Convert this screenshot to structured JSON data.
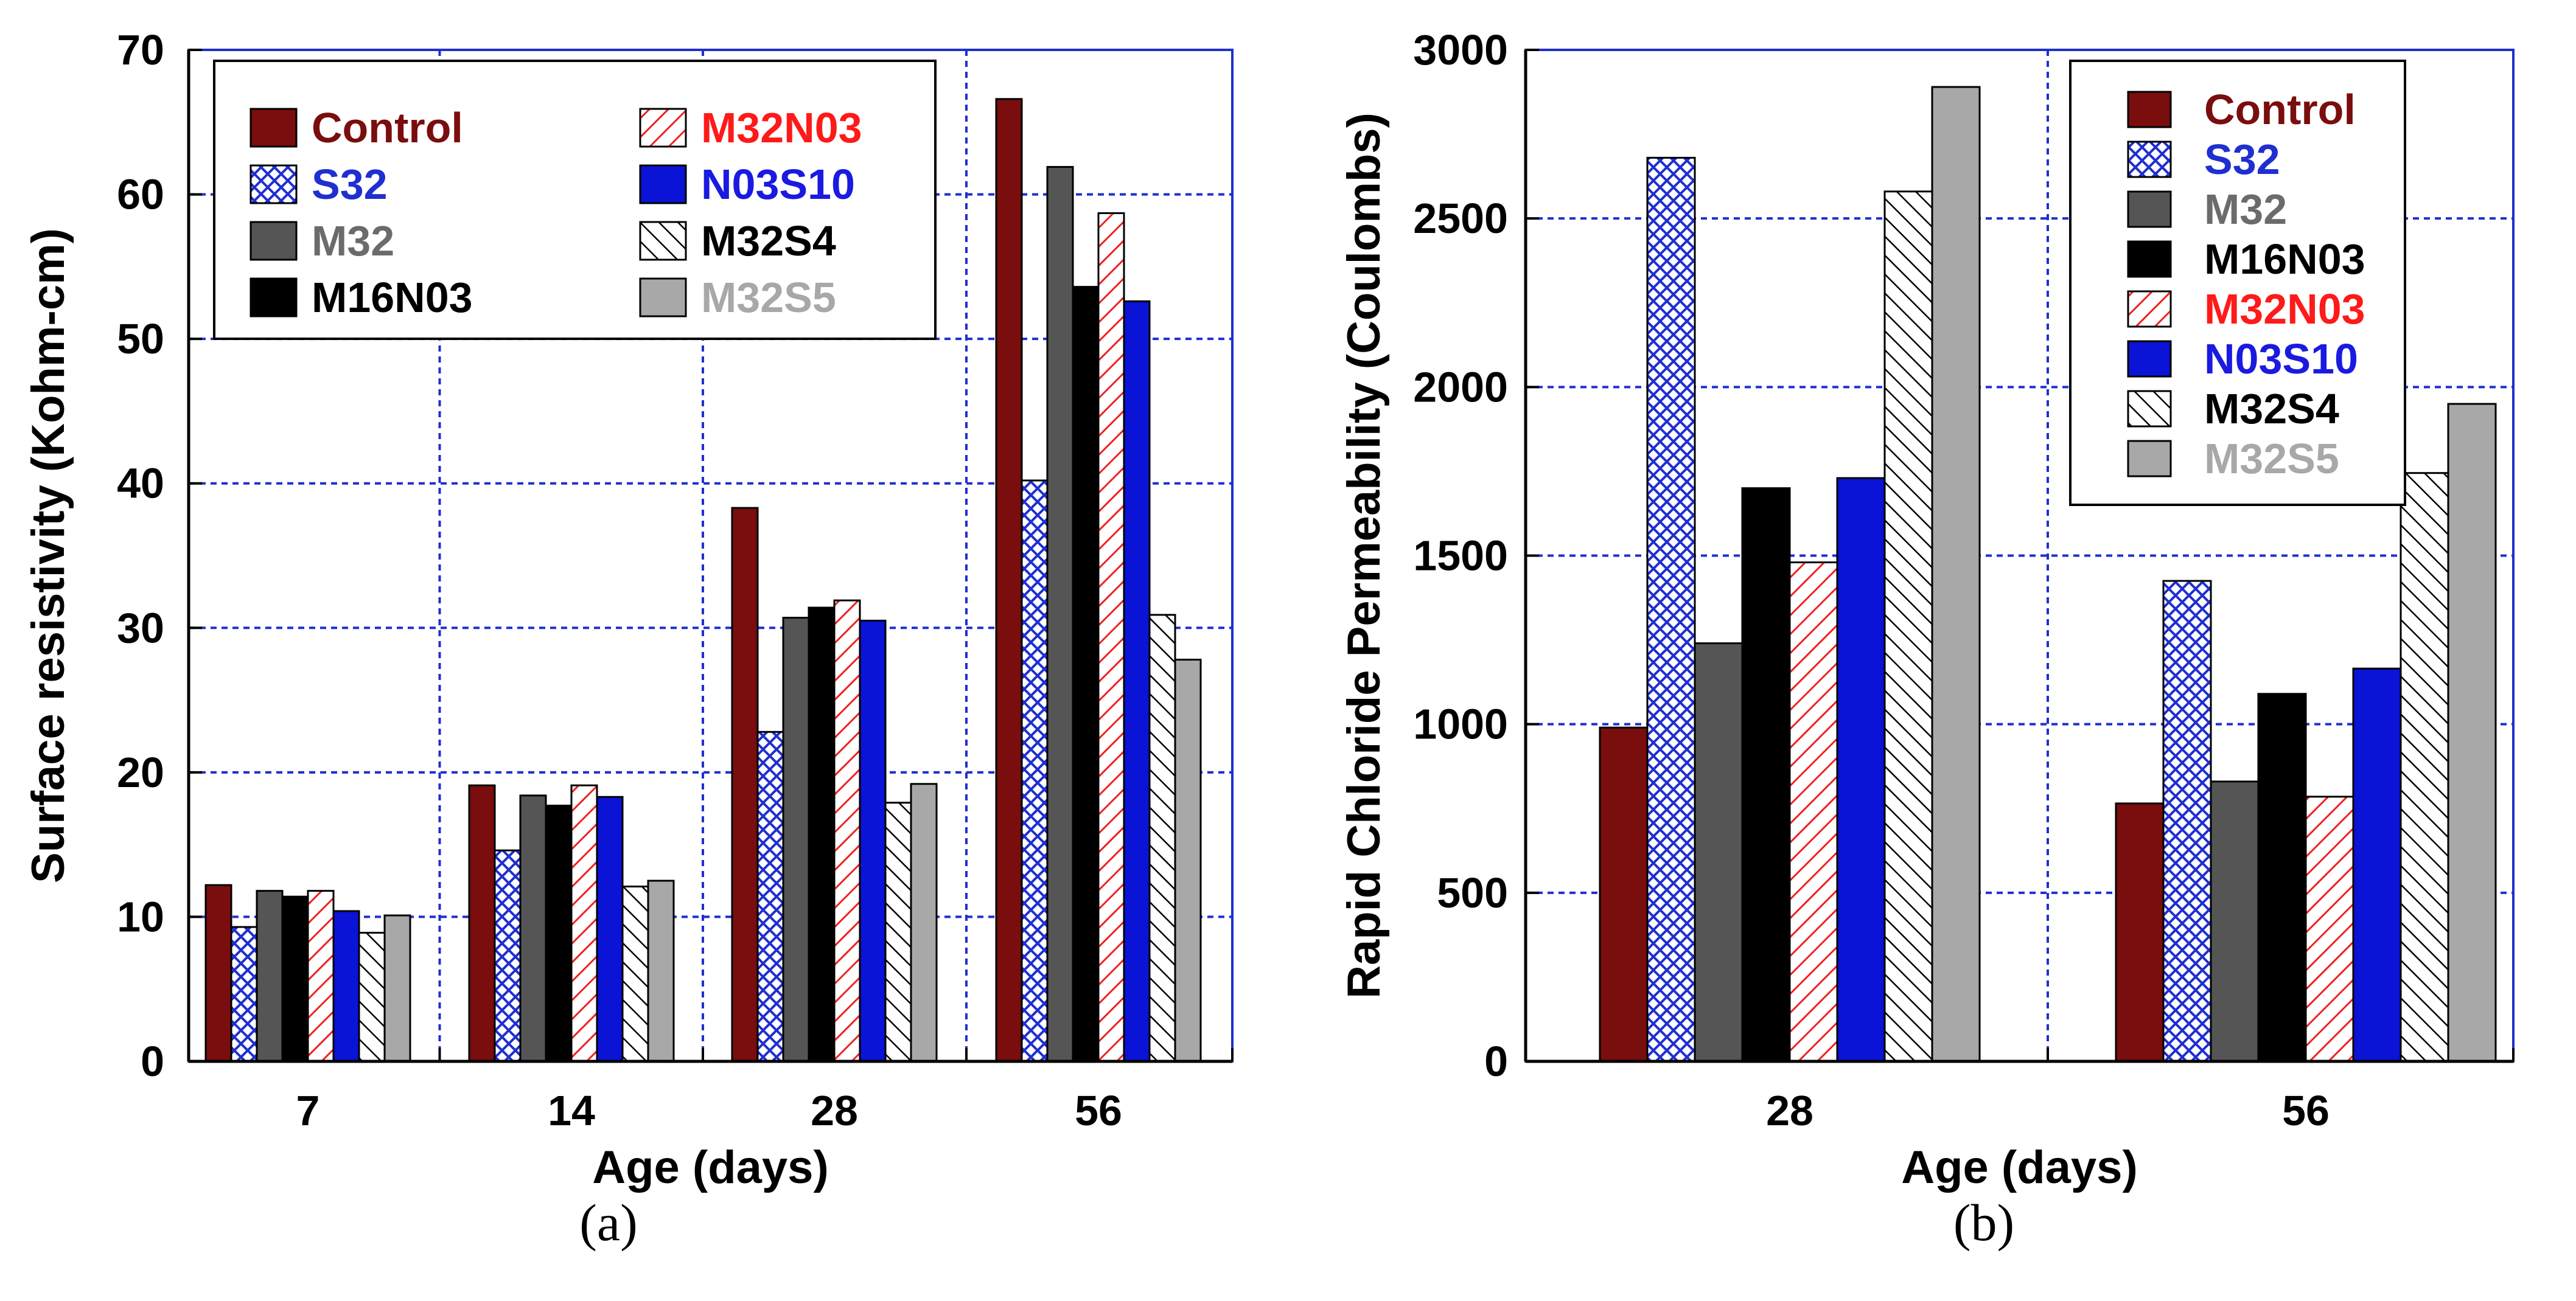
{
  "panels": [
    {
      "caption_label": "(a)",
      "chart_data": {
        "type": "bar",
        "title": "",
        "xlabel": "Age (days)",
        "ylabel": "Surface resistivity (Kohm-cm)",
        "ylim": [
          0,
          70
        ],
        "yticks": [
          0,
          10,
          20,
          30,
          40,
          50,
          60,
          70
        ],
        "ytick_labels": [
          "0",
          "10",
          "20",
          "30",
          "40",
          "50",
          "60",
          "70"
        ],
        "grid": true,
        "legend_position": "top",
        "categories": [
          "7",
          "14",
          "28",
          "56"
        ],
        "series": [
          {
            "name": "Control",
            "values": [
              12.2,
              19.1,
              38.3,
              66.6
            ]
          },
          {
            "name": "S32",
            "values": [
              9.3,
              14.6,
              22.8,
              40.2
            ]
          },
          {
            "name": "M32",
            "values": [
              11.8,
              18.4,
              30.7,
              61.9
            ]
          },
          {
            "name": "M16N03",
            "values": [
              11.4,
              17.7,
              31.4,
              53.6
            ]
          },
          {
            "name": "M32N03",
            "values": [
              11.8,
              19.1,
              31.9,
              58.7
            ]
          },
          {
            "name": "N03S10",
            "values": [
              10.4,
              18.3,
              30.5,
              52.6
            ]
          },
          {
            "name": "M32S4",
            "values": [
              8.9,
              12.1,
              17.9,
              30.9
            ]
          },
          {
            "name": "M32S5",
            "values": [
              10.1,
              12.5,
              19.2,
              27.8
            ]
          }
        ]
      }
    },
    {
      "caption_label": "(b)",
      "chart_data": {
        "type": "bar",
        "title": "",
        "xlabel": "Age (days)",
        "ylabel": "Rapid Chloride Permeability (Coulombs)",
        "ylim": [
          0,
          3000
        ],
        "yticks": [
          0,
          500,
          1000,
          1500,
          2000,
          2500,
          3000
        ],
        "ytick_labels": [
          "0",
          "500",
          "1000",
          "1500",
          "2000",
          "2500",
          "3000"
        ],
        "grid": true,
        "legend_position": "top-right",
        "categories": [
          "28",
          "56"
        ],
        "series": [
          {
            "name": "Control",
            "values": [
              990,
              765
            ]
          },
          {
            "name": "S32",
            "values": [
              2680,
              1425
            ]
          },
          {
            "name": "M32",
            "values": [
              1240,
              830
            ]
          },
          {
            "name": "M16N03",
            "values": [
              1700,
              1090
            ]
          },
          {
            "name": "M32N03",
            "values": [
              1480,
              785
            ]
          },
          {
            "name": "N03S10",
            "values": [
              1730,
              1165
            ]
          },
          {
            "name": "M32S4",
            "values": [
              2580,
              1745
            ]
          },
          {
            "name": "M32S5",
            "values": [
              2890,
              1950
            ]
          }
        ]
      }
    }
  ],
  "series_styles": [
    {
      "fill": "#7a0d0d",
      "pattern": "solid",
      "label_color": "#7a0d0d"
    },
    {
      "fill": "#ffffff",
      "pattern": "crosshatch",
      "ink": "#1f2fd0",
      "label_color": "#1f2fd0"
    },
    {
      "fill": "#555555",
      "pattern": "solid",
      "label_color": "#6b6b6b"
    },
    {
      "fill": "#000000",
      "pattern": "solid",
      "label_color": "#000000"
    },
    {
      "fill": "#ffffff",
      "pattern": "diagonal",
      "ink": "#ee2222",
      "label_color": "#ff1a1a"
    },
    {
      "fill": "#0a13d6",
      "pattern": "solid",
      "label_color": "#1a1ae0"
    },
    {
      "fill": "#ffffff",
      "pattern": "diagonal",
      "ink": "#000000",
      "label_color": "#000000"
    },
    {
      "fill": "#a8a8a8",
      "pattern": "solid",
      "label_color": "#a8a8a8"
    }
  ],
  "colors": {
    "grid": "#1f2fd0",
    "axis": "#000000"
  }
}
